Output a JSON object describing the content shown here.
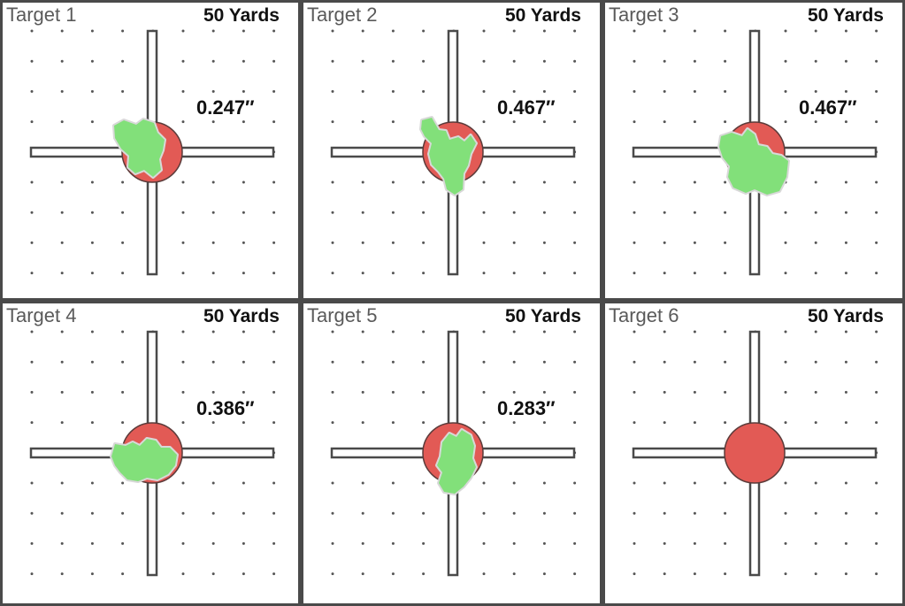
{
  "colors": {
    "bullseye": "#e25a55",
    "bullseye_border": "#5b3b3a",
    "hole": "#82e07a",
    "crosshair_stroke": "#4a4a4a",
    "dot": "#555555",
    "panel_border": "#4a4a4a"
  },
  "targets": [
    {
      "label": "Target 1",
      "distance": "50 Yards",
      "group_size": "0.247″",
      "hole_shape": "blob-1"
    },
    {
      "label": "Target 2",
      "distance": "50 Yards",
      "group_size": "0.467″",
      "hole_shape": "blob-2"
    },
    {
      "label": "Target 3",
      "distance": "50 Yards",
      "group_size": "0.467″",
      "hole_shape": "blob-3"
    },
    {
      "label": "Target 4",
      "distance": "50 Yards",
      "group_size": "0.386″",
      "hole_shape": "blob-4"
    },
    {
      "label": "Target 5",
      "distance": "50 Yards",
      "group_size": "0.283″",
      "hole_shape": "blob-5"
    },
    {
      "label": "Target 6",
      "distance": "50 Yards",
      "group_size": "",
      "hole_shape": "none"
    }
  ]
}
